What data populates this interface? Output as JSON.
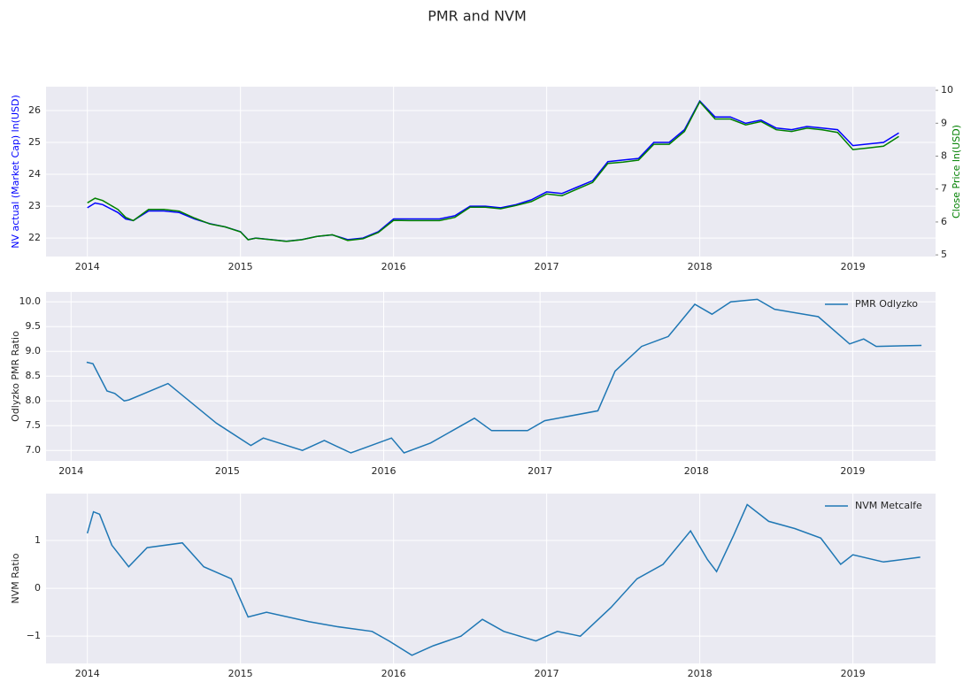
{
  "title": "PMR and NVM",
  "chart_data": [
    {
      "type": "line",
      "ylabel": "NV actual (Market Cap) ln(USD)",
      "ylabel_color": "#0000ff",
      "y2label": "Close Price ln(USD)",
      "y2label_color": "#008000",
      "x": [
        2014.0,
        2014.05,
        2014.1,
        2014.2,
        2014.25,
        2014.3,
        2014.4,
        2014.5,
        2014.6,
        2014.7,
        2014.8,
        2014.9,
        2015.0,
        2015.05,
        2015.1,
        2015.2,
        2015.3,
        2015.4,
        2015.5,
        2015.6,
        2015.7,
        2015.8,
        2015.9,
        2016.0,
        2016.1,
        2016.2,
        2016.3,
        2016.4,
        2016.5,
        2016.6,
        2016.7,
        2016.8,
        2016.9,
        2017.0,
        2017.1,
        2017.2,
        2017.3,
        2017.4,
        2017.5,
        2017.6,
        2017.7,
        2017.8,
        2017.9,
        2018.0,
        2018.1,
        2018.2,
        2018.3,
        2018.4,
        2018.5,
        2018.6,
        2018.7,
        2018.8,
        2018.9,
        2019.0,
        2019.1,
        2019.2,
        2019.3
      ],
      "series": [
        {
          "color": "#0000ff",
          "values": [
            22.95,
            23.1,
            23.05,
            22.8,
            22.6,
            22.55,
            22.85,
            22.85,
            22.8,
            22.6,
            22.45,
            22.35,
            22.2,
            21.95,
            22.0,
            21.95,
            21.9,
            21.95,
            22.05,
            22.1,
            21.95,
            22.0,
            22.2,
            22.6,
            22.6,
            22.6,
            22.6,
            22.7,
            23.0,
            23.0,
            22.95,
            23.05,
            23.2,
            23.45,
            23.4,
            23.6,
            23.8,
            24.4,
            24.45,
            24.5,
            25.0,
            25.0,
            25.4,
            26.3,
            25.8,
            25.8,
            25.6,
            25.7,
            25.45,
            25.4,
            25.5,
            25.45,
            25.4,
            24.9,
            24.95,
            25.0,
            25.3
          ]
        },
        {
          "color": "#008000",
          "axis": "y2",
          "values": [
            6.58,
            6.72,
            6.65,
            6.38,
            6.14,
            6.04,
            6.38,
            6.38,
            6.33,
            6.12,
            5.94,
            5.85,
            5.7,
            5.46,
            5.51,
            5.46,
            5.41,
            5.46,
            5.56,
            5.61,
            5.44,
            5.49,
            5.68,
            6.05,
            6.04,
            6.04,
            6.04,
            6.14,
            6.45,
            6.45,
            6.4,
            6.5,
            6.62,
            6.85,
            6.8,
            7.0,
            7.2,
            7.78,
            7.82,
            7.88,
            8.36,
            8.36,
            8.75,
            9.65,
            9.13,
            9.13,
            8.95,
            9.05,
            8.8,
            8.75,
            8.85,
            8.8,
            8.72,
            8.2,
            8.25,
            8.3,
            8.6
          ]
        }
      ],
      "xlim": [
        2013.73,
        2019.54
      ],
      "xticks": [
        2014,
        2015,
        2016,
        2017,
        2018,
        2019
      ],
      "ylim": [
        21.42,
        26.75
      ],
      "yticks": [
        22,
        23,
        24,
        25,
        26
      ],
      "y2lim": [
        4.95,
        10.11
      ],
      "y2ticks": [
        5,
        6,
        7,
        8,
        9,
        10
      ],
      "grid": true
    },
    {
      "type": "line",
      "ylabel": "Odlyzko PMR Ratio",
      "x": [
        2014.1,
        2014.14,
        2014.23,
        2014.28,
        2014.34,
        2014.37,
        2014.62,
        2014.93,
        2015.15,
        2015.23,
        2015.48,
        2015.62,
        2015.79,
        2016.05,
        2016.13,
        2016.3,
        2016.58,
        2016.69,
        2016.92,
        2017.03,
        2017.37,
        2017.48,
        2017.65,
        2017.82,
        2017.99,
        2018.1,
        2018.22,
        2018.39,
        2018.5,
        2018.78,
        2018.98,
        2019.07,
        2019.15,
        2019.44
      ],
      "series": [
        {
          "name": "PMR Odlyzko",
          "color": "#1f77b4",
          "values": [
            8.78,
            8.75,
            8.2,
            8.15,
            8.0,
            8.02,
            8.35,
            7.55,
            7.1,
            7.25,
            7.0,
            7.2,
            6.95,
            7.25,
            6.95,
            7.15,
            7.65,
            7.4,
            7.4,
            7.6,
            7.8,
            8.6,
            9.1,
            9.3,
            9.95,
            9.75,
            10.0,
            10.05,
            9.85,
            9.7,
            9.15,
            9.25,
            9.1,
            9.12
          ]
        }
      ],
      "xlim": [
        2013.84,
        2019.53
      ],
      "xticks": [
        2014,
        2015,
        2016,
        2017,
        2018,
        2019
      ],
      "ylim": [
        6.79,
        10.2
      ],
      "yticks": [
        {
          "value": 7,
          "label": "7.0"
        },
        {
          "value": 7.5,
          "label": "7.5"
        },
        {
          "value": 8,
          "label": "8.0"
        },
        {
          "value": 8.5,
          "label": "8.5"
        },
        {
          "value": 9,
          "label": "9.0"
        },
        {
          "value": 9.5,
          "label": "9.5"
        },
        {
          "value": 10,
          "label": "10.0"
        }
      ],
      "grid": true,
      "legend": "upper right"
    },
    {
      "type": "line",
      "ylabel": "NVM Ratio",
      "x": [
        2014.0,
        2014.04,
        2014.08,
        2014.16,
        2014.27,
        2014.39,
        2014.62,
        2014.76,
        2014.94,
        2015.05,
        2015.17,
        2015.45,
        2015.63,
        2015.86,
        2015.97,
        2016.12,
        2016.26,
        2016.44,
        2016.58,
        2016.72,
        2016.93,
        2017.07,
        2017.22,
        2017.42,
        2017.59,
        2017.76,
        2017.94,
        2018.05,
        2018.11,
        2018.22,
        2018.31,
        2018.45,
        2018.62,
        2018.79,
        2018.92,
        2019.0,
        2019.2,
        2019.44
      ],
      "series": [
        {
          "name": "NVM Metcalfe",
          "color": "#1f77b4",
          "values": [
            1.15,
            1.6,
            1.55,
            0.9,
            0.45,
            0.85,
            0.95,
            0.45,
            0.2,
            -0.6,
            -0.5,
            -0.7,
            -0.8,
            -0.9,
            -1.1,
            -1.4,
            -1.2,
            -1.0,
            -0.65,
            -0.9,
            -1.1,
            -0.9,
            -1.0,
            -0.4,
            0.2,
            0.5,
            1.2,
            0.6,
            0.35,
            1.1,
            1.75,
            1.4,
            1.25,
            1.05,
            0.5,
            0.7,
            0.55,
            0.65
          ]
        }
      ],
      "xlim": [
        2013.73,
        2019.54
      ],
      "xticks": [
        2014,
        2015,
        2016,
        2017,
        2018,
        2019
      ],
      "ylim": [
        -1.57,
        1.98
      ],
      "yticks": [
        {
          "value": -1,
          "label": "−1"
        },
        0,
        1
      ],
      "grid": true,
      "legend": "upper right"
    }
  ]
}
